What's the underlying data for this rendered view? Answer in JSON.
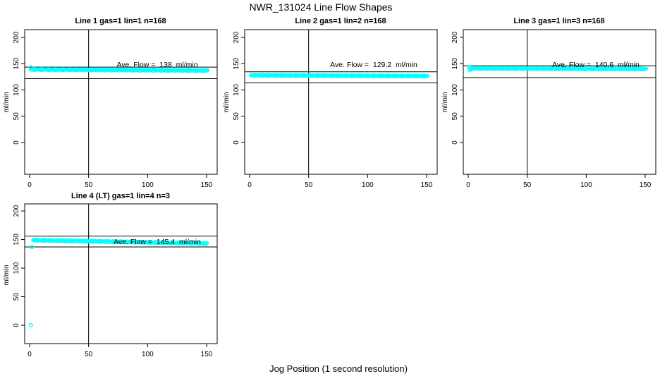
{
  "colors": {
    "points": "#00FFFF",
    "lines": "#000000",
    "background": "#FFFFFF",
    "text": "#000000"
  },
  "chart_data": {
    "type": "scatter",
    "title": "NWR_131024  Line Flow Shapes",
    "xlabel": "Jog Position (1 second resolution)",
    "ylabel": "ml/min",
    "x_ticks": [
      0,
      50,
      100,
      150
    ],
    "y_ticks": [
      0,
      50,
      100,
      150,
      200
    ],
    "xlim": [
      0,
      150
    ],
    "ylim": [
      0,
      200
    ],
    "grid": false,
    "vertical_ref_x": 50,
    "annotation_y_value": 150,
    "plots": [
      {
        "title": "Line 1 gas=1 lin=1 n=168",
        "annotation": "Ave. Flow =  138  ml/min",
        "ave_flow": 138,
        "n": 168,
        "upper_ref": 143.5,
        "lower_ref": 121.5,
        "band": {
          "x_start": 1,
          "x_end": 150,
          "y_start": 139,
          "y_end": 137
        },
        "extra_points": [
          {
            "x": 1,
            "y": 143
          }
        ]
      },
      {
        "title": "Line 2 gas=1 lin=2 n=168",
        "annotation": "Ave. Flow =  129.2  ml/min",
        "ave_flow": 129.2,
        "n": 168,
        "upper_ref": 134.5,
        "lower_ref": 113.5,
        "band": {
          "x_start": 1,
          "x_end": 150,
          "y_start": 128,
          "y_end": 126.5
        },
        "extra_points": []
      },
      {
        "title": "Line 3 gas=1 lin=3 n=168",
        "annotation": "Ave. Flow =  140.6  ml/min",
        "ave_flow": 140.6,
        "n": 168,
        "upper_ref": 146,
        "lower_ref": 123.5,
        "band": {
          "x_start": 1,
          "x_end": 150,
          "y_start": 141,
          "y_end": 140
        },
        "extra_points": [
          {
            "x": 1,
            "y": 143
          },
          {
            "x": 1.5,
            "y": 138
          }
        ]
      },
      {
        "title": "Line 4 (LT) gas=1 lin=4 n=3",
        "annotation": "Ave. Flow =  145.4  ml/min",
        "ave_flow": 145.4,
        "n": 3,
        "upper_ref": 156,
        "lower_ref": 137,
        "band": {
          "x_start": 3,
          "x_end": 150,
          "y_start": 149,
          "y_end": 143
        },
        "extra_points": [
          {
            "x": 1,
            "y": 0
          },
          {
            "x": 2,
            "y": 137
          }
        ]
      }
    ]
  }
}
